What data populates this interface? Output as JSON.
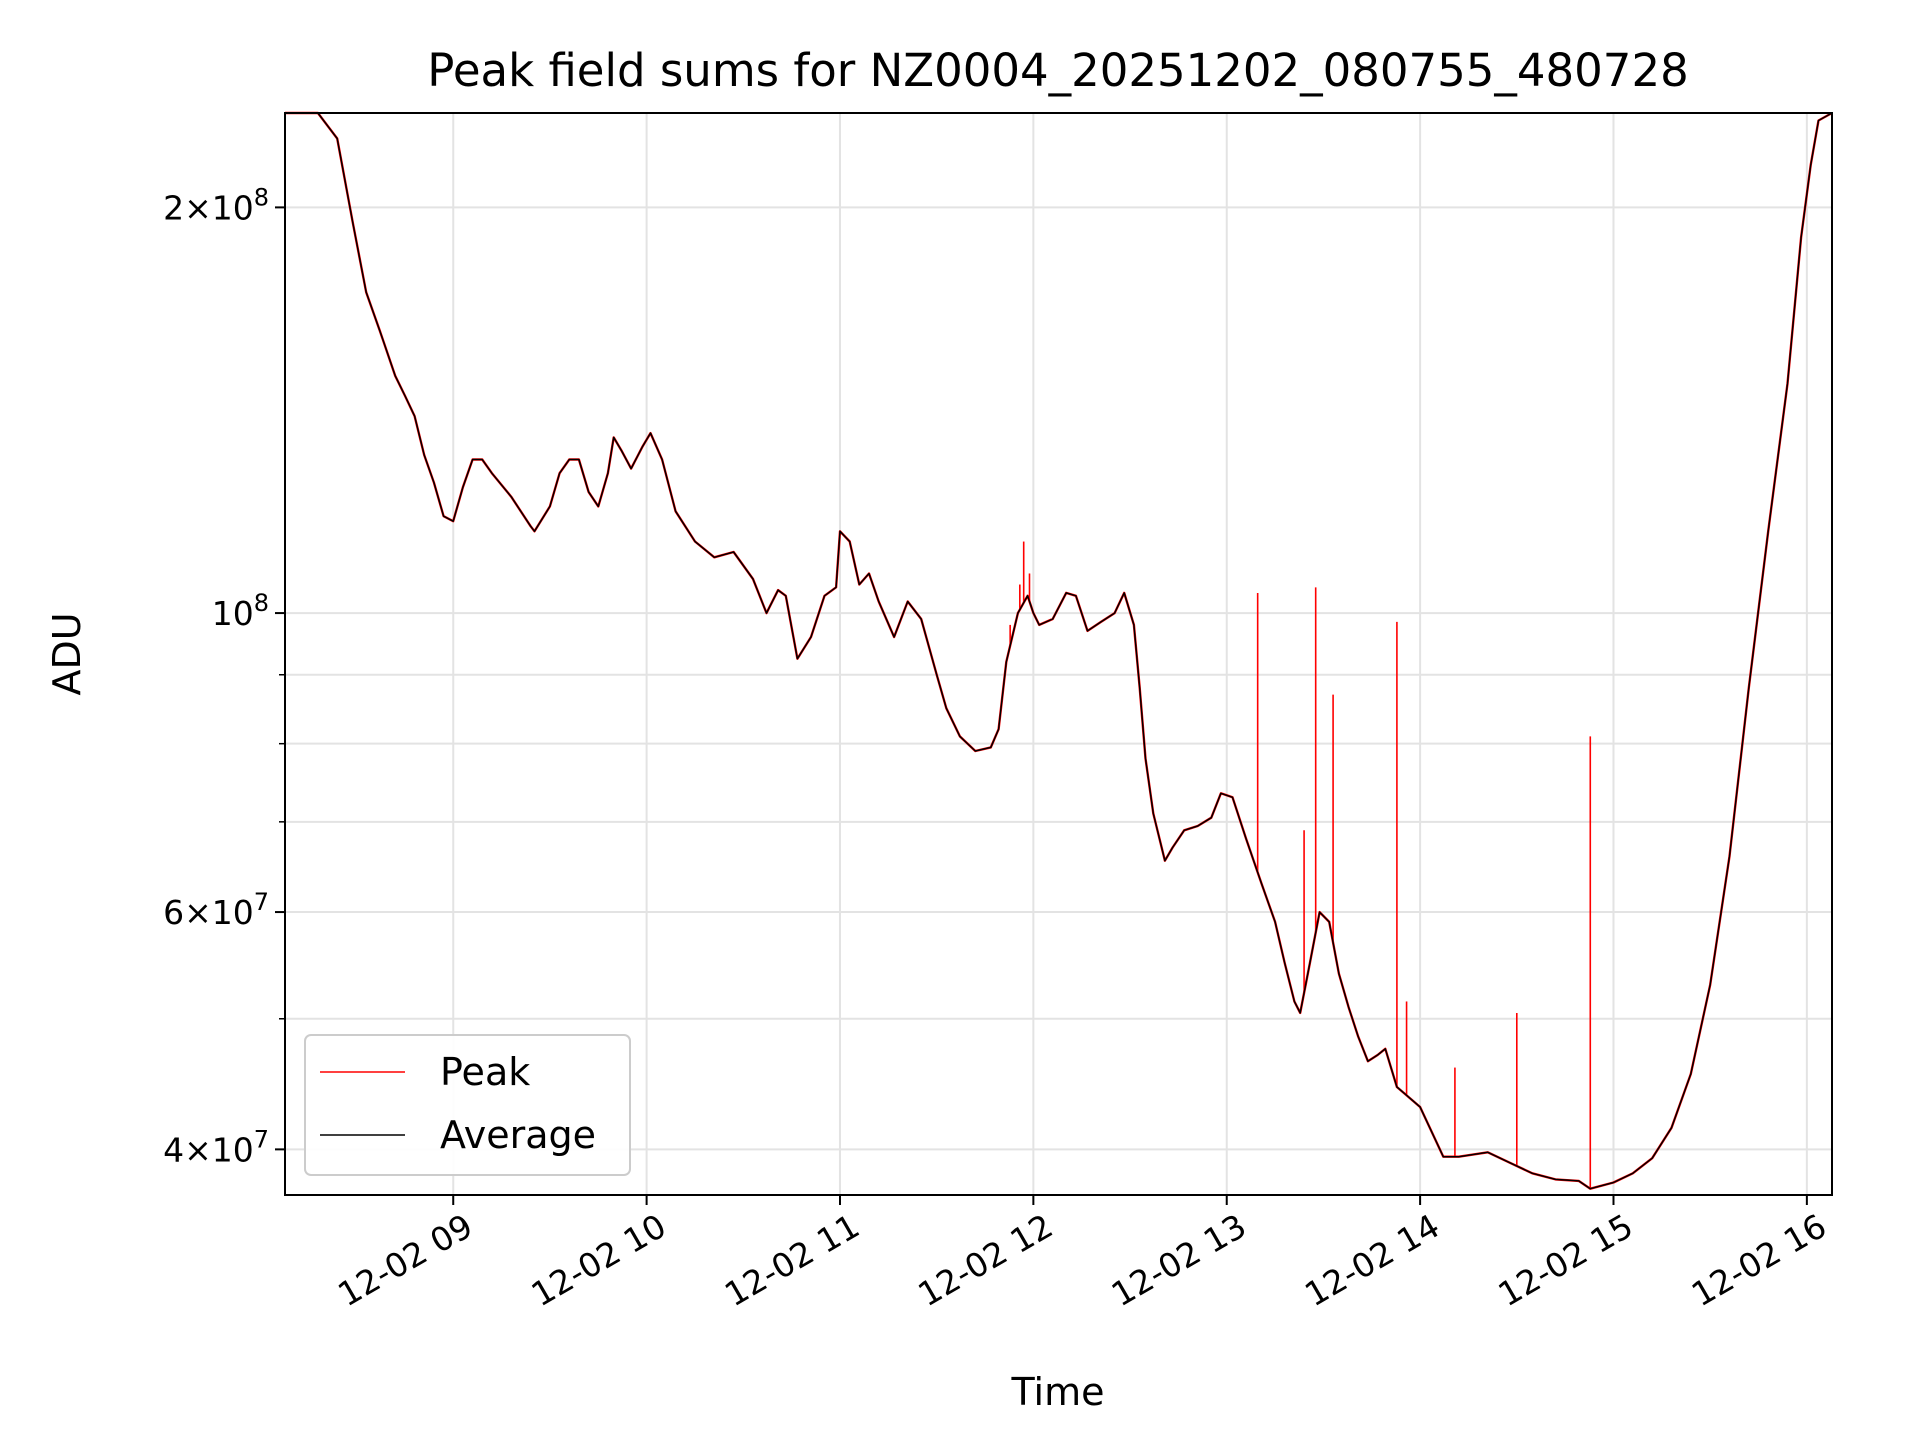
{
  "chart_data": {
    "type": "line",
    "title": "Peak field sums for NZ0004_20251202_080755_480728",
    "xlabel": "Time",
    "ylabel": "ADU",
    "yscale": "log",
    "ylim": [
      37000000,
      235000000
    ],
    "xlim_hours": [
      8.13,
      16.13
    ],
    "grid": true,
    "legend_position": "lower-left",
    "x_ticks": [
      {
        "hour": 9,
        "label": "12-02 09"
      },
      {
        "hour": 10,
        "label": "12-02 10"
      },
      {
        "hour": 11,
        "label": "12-02 11"
      },
      {
        "hour": 12,
        "label": "12-02 12"
      },
      {
        "hour": 13,
        "label": "12-02 13"
      },
      {
        "hour": 14,
        "label": "12-02 14"
      },
      {
        "hour": 15,
        "label": "12-02 15"
      },
      {
        "hour": 16,
        "label": "12-02 16"
      }
    ],
    "y_ticks": [
      {
        "value": 40000000,
        "mantissa": "4",
        "times": "×",
        "base": "10",
        "exp": "7"
      },
      {
        "value": 60000000,
        "mantissa": "6",
        "times": "×",
        "base": "10",
        "exp": "7"
      },
      {
        "value": 100000000,
        "mantissa": "",
        "times": "",
        "base": "10",
        "exp": "8"
      },
      {
        "value": 200000000,
        "mantissa": "2",
        "times": "×",
        "base": "10",
        "exp": "8"
      }
    ],
    "y_minor_ticks": [
      50000000,
      70000000,
      80000000,
      90000000
    ],
    "series": [
      {
        "name": "Average",
        "color": "#000000",
        "points": [
          [
            8.13,
            235000000
          ],
          [
            8.3,
            235000000
          ],
          [
            8.4,
            225000000
          ],
          [
            8.48,
            195000000
          ],
          [
            8.55,
            173000000
          ],
          [
            8.62,
            162000000
          ],
          [
            8.7,
            150000000
          ],
          [
            8.75,
            145000000
          ],
          [
            8.8,
            140000000
          ],
          [
            8.85,
            131000000
          ],
          [
            8.9,
            125000000
          ],
          [
            8.95,
            118000000
          ],
          [
            9.0,
            117000000
          ],
          [
            9.05,
            124000000
          ],
          [
            9.1,
            130000000
          ],
          [
            9.15,
            130000000
          ],
          [
            9.2,
            127000000
          ],
          [
            9.3,
            122000000
          ],
          [
            9.4,
            116000000
          ],
          [
            9.42,
            115000000
          ],
          [
            9.5,
            120000000
          ],
          [
            9.55,
            127000000
          ],
          [
            9.6,
            130000000
          ],
          [
            9.65,
            130000000
          ],
          [
            9.7,
            123000000
          ],
          [
            9.75,
            120000000
          ],
          [
            9.8,
            127000000
          ],
          [
            9.83,
            135000000
          ],
          [
            9.87,
            132000000
          ],
          [
            9.92,
            128000000
          ],
          [
            9.98,
            133000000
          ],
          [
            10.02,
            136000000
          ],
          [
            10.08,
            130000000
          ],
          [
            10.15,
            119000000
          ],
          [
            10.25,
            113000000
          ],
          [
            10.35,
            110000000
          ],
          [
            10.45,
            111000000
          ],
          [
            10.55,
            106000000
          ],
          [
            10.62,
            100000000
          ],
          [
            10.68,
            104000000
          ],
          [
            10.72,
            103000000
          ],
          [
            10.78,
            92500000
          ],
          [
            10.85,
            96000000
          ],
          [
            10.92,
            103000000
          ],
          [
            10.98,
            104500000
          ],
          [
            11.0,
            115000000
          ],
          [
            11.05,
            113000000
          ],
          [
            11.1,
            105000000
          ],
          [
            11.15,
            107000000
          ],
          [
            11.2,
            102000000
          ],
          [
            11.28,
            96000000
          ],
          [
            11.35,
            102000000
          ],
          [
            11.42,
            99000000
          ],
          [
            11.5,
            90000000
          ],
          [
            11.55,
            85000000
          ],
          [
            11.62,
            81000000
          ],
          [
            11.7,
            79000000
          ],
          [
            11.78,
            79500000
          ],
          [
            11.82,
            82000000
          ],
          [
            11.86,
            92000000
          ],
          [
            11.92,
            100000000
          ],
          [
            11.97,
            103000000
          ],
          [
            12.0,
            100000000
          ],
          [
            12.03,
            98000000
          ],
          [
            12.1,
            99000000
          ],
          [
            12.17,
            103500000
          ],
          [
            12.22,
            103000000
          ],
          [
            12.28,
            97000000
          ],
          [
            12.35,
            98500000
          ],
          [
            12.42,
            100000000
          ],
          [
            12.47,
            103500000
          ],
          [
            12.52,
            98000000
          ],
          [
            12.55,
            88000000
          ],
          [
            12.58,
            78000000
          ],
          [
            12.62,
            71000000
          ],
          [
            12.68,
            65500000
          ],
          [
            12.72,
            67000000
          ],
          [
            12.78,
            69000000
          ],
          [
            12.85,
            69500000
          ],
          [
            12.92,
            70500000
          ],
          [
            12.97,
            73500000
          ],
          [
            13.03,
            73000000
          ],
          [
            13.1,
            68000000
          ],
          [
            13.18,
            63000000
          ],
          [
            13.25,
            59000000
          ],
          [
            13.3,
            55000000
          ],
          [
            13.35,
            51500000
          ],
          [
            13.38,
            50500000
          ],
          [
            13.43,
            55000000
          ],
          [
            13.48,
            60000000
          ],
          [
            13.53,
            59000000
          ],
          [
            13.58,
            54000000
          ],
          [
            13.63,
            51000000
          ],
          [
            13.68,
            48500000
          ],
          [
            13.73,
            46500000
          ],
          [
            13.78,
            47000000
          ],
          [
            13.82,
            47500000
          ],
          [
            13.88,
            44500000
          ],
          [
            13.92,
            44000000
          ],
          [
            14.0,
            43000000
          ],
          [
            14.05,
            41500000
          ],
          [
            14.12,
            39500000
          ],
          [
            14.2,
            39500000
          ],
          [
            14.35,
            39800000
          ],
          [
            14.48,
            39000000
          ],
          [
            14.58,
            38400000
          ],
          [
            14.7,
            38000000
          ],
          [
            14.82,
            37900000
          ],
          [
            14.88,
            37400000
          ],
          [
            15.0,
            37800000
          ],
          [
            15.1,
            38400000
          ],
          [
            15.2,
            39400000
          ],
          [
            15.3,
            41500000
          ],
          [
            15.4,
            45500000
          ],
          [
            15.5,
            53000000
          ],
          [
            15.6,
            66000000
          ],
          [
            15.7,
            88000000
          ],
          [
            15.8,
            115000000
          ],
          [
            15.9,
            148000000
          ],
          [
            15.97,
            190000000
          ],
          [
            16.02,
            215000000
          ],
          [
            16.06,
            232000000
          ],
          [
            16.13,
            235000000
          ]
        ]
      },
      {
        "name": "Peak",
        "color": "#ff0000",
        "spikes": [
          [
            11.88,
            98000000
          ],
          [
            11.93,
            105000000
          ],
          [
            11.95,
            113000000
          ],
          [
            11.98,
            107000000
          ],
          [
            13.16,
            103500000
          ],
          [
            13.4,
            69000000
          ],
          [
            13.46,
            104500000
          ],
          [
            13.55,
            87000000
          ],
          [
            13.88,
            98500000
          ],
          [
            13.93,
            51500000
          ],
          [
            14.18,
            46000000
          ],
          [
            14.5,
            50500000
          ],
          [
            14.88,
            81000000
          ]
        ]
      }
    ]
  }
}
